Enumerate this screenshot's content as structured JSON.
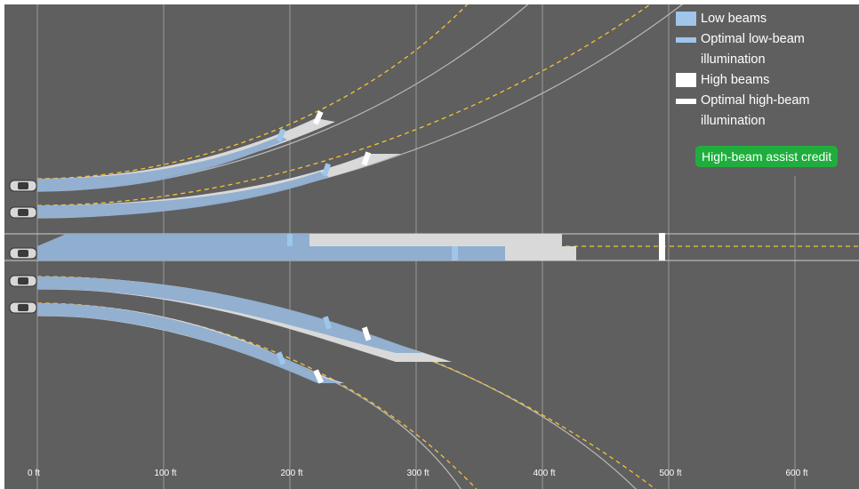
{
  "legend": {
    "low_beams": "Low beams",
    "optimal_low_line1": "Optimal low-beam",
    "optimal_low_line2": "illumination",
    "high_beams": "High beams",
    "optimal_high_line1": "Optimal high-beam",
    "optimal_high_line2": "illumination"
  },
  "credit_badge": "High-beam assist credit",
  "axis": {
    "ticks": [
      "0 ft",
      "100 ft",
      "200 ft",
      "300 ft",
      "400 ft",
      "500 ft",
      "600 ft"
    ],
    "tick_values_ft": [
      0,
      100,
      200,
      300,
      400,
      500,
      600
    ]
  },
  "scenarios": [
    "sharp-left",
    "gentle-left",
    "straight",
    "gentle-right",
    "sharp-right"
  ],
  "straight_road_ft": {
    "low_beam_upper_end": 214,
    "high_beam_upper_end": 415,
    "low_beam_lower_end": 371,
    "high_beam_lower_end": 427,
    "optimal_low_upper": 200,
    "optimal_low_lower": 330,
    "optimal_high": 494
  },
  "colors": {
    "background": "#5f5f5f",
    "low_beam": "#9fc5eb",
    "high_beam": "#ffffff",
    "road_marking": "#f5c232",
    "credit_badge": "#1fae3d",
    "grid": "#9a9a9a"
  }
}
